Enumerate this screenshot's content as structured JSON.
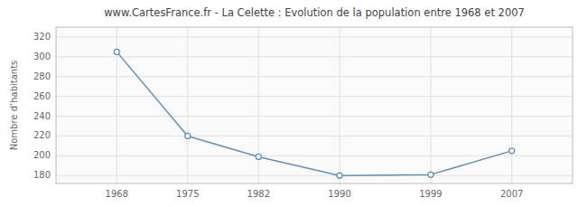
{
  "chart_data": {
    "type": "line",
    "title": "www.CartesFrance.fr - La Celette : Evolution de la population entre 1968 et 2007",
    "y_label": "Nombre d’habitants",
    "x": [
      1968,
      1975,
      1982,
      1990,
      1999,
      2007
    ],
    "values": [
      305,
      220,
      199,
      180,
      181,
      205
    ],
    "color": "#6090b8",
    "marker": "circle",
    "xlim": [
      1962,
      2013
    ],
    "xticks": [
      1968,
      1975,
      1982,
      1990,
      1999,
      2007
    ],
    "ylim": [
      172,
      330
    ],
    "yticks": [
      180,
      200,
      220,
      240,
      260,
      280,
      300,
      320
    ],
    "grid": true
  }
}
